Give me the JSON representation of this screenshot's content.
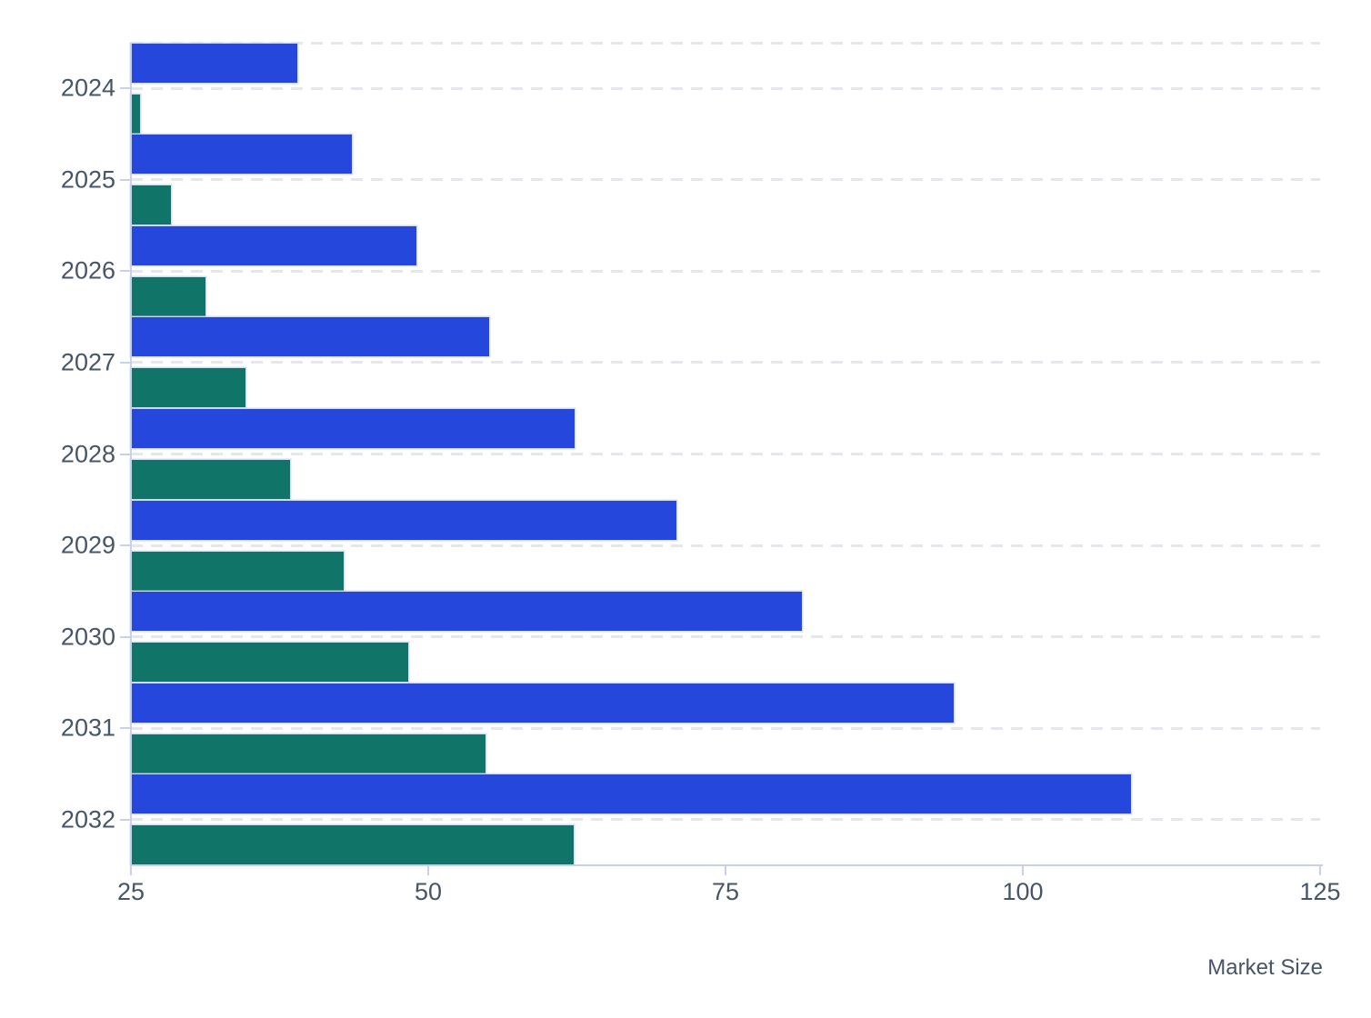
{
  "chart_data": {
    "type": "bar",
    "orientation": "horizontal",
    "title": "",
    "xlabel": "Market Size",
    "ylabel": "",
    "categories": [
      "2024",
      "2025",
      "2026",
      "2027",
      "2028",
      "2029",
      "2030",
      "2031",
      "2032"
    ],
    "series": [
      {
        "name": "blue",
        "color": "#2647DB",
        "values": [
          39.0,
          43.6,
          49.0,
          55.1,
          62.3,
          70.9,
          81.4,
          94.2,
          109.1
        ]
      },
      {
        "name": "teal",
        "color": "#107568",
        "values": [
          25.8,
          28.4,
          31.3,
          34.6,
          38.4,
          42.9,
          48.3,
          54.8,
          62.2
        ]
      }
    ],
    "xlim": [
      25,
      125
    ],
    "x_ticks": [
      "25",
      "50",
      "75",
      "100",
      "125"
    ],
    "grid": "horizontal dashed gridlines at plot top and at each category center",
    "legend": "none",
    "colors": {
      "axis_line": "#c9d0ea",
      "gridline": "#e5e7ec",
      "tick_label": "#475569",
      "background": "#ffffff"
    }
  }
}
